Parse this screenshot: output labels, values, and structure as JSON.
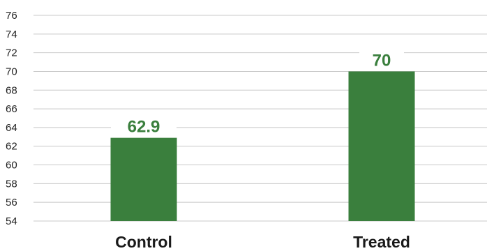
{
  "chart_data": {
    "type": "bar",
    "categories": [
      "Control",
      "Treated"
    ],
    "values": [
      62.9,
      70
    ],
    "value_labels": [
      "62.9",
      "70"
    ],
    "ylim": [
      54,
      76
    ],
    "yticks": [
      54,
      56,
      58,
      60,
      62,
      64,
      66,
      68,
      70,
      72,
      74,
      76
    ],
    "grid": true,
    "legend": "none",
    "colors": {
      "bar": "#3a7f3d",
      "label": "#3a7f3d"
    }
  }
}
